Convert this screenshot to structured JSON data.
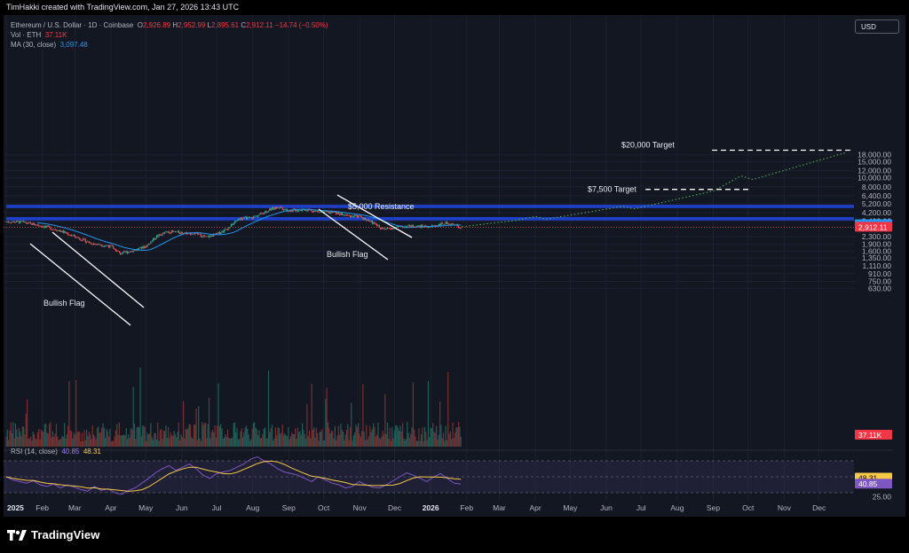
{
  "header": {
    "credit": "TimHakki created with TradingView.com, Jan 27, 2026 13:43 UTC"
  },
  "legend": {
    "symbol": "Ethereum / U.S. Dollar · 1D · Coinbase",
    "o_label": "O",
    "o": "2,926.89",
    "h_label": "H",
    "h": "2,952.99",
    "l_label": "L",
    "l": "2,895.61",
    "c_label": "C",
    "c": "2,912.11",
    "change": "−14.74 (−0.50%)",
    "vol_label": "Vol · ETH",
    "vol": "37.11K",
    "ma_label": "MA (30, close)",
    "ma": "3,097.48",
    "rsi_label": "RSI (14, close)",
    "rsi": "40.85",
    "rsi_ma": "48.31"
  },
  "currency_button": "USD",
  "footer": {
    "logo_text": "TradingView"
  },
  "colors": {
    "up": "#26a69a",
    "down": "#ef5350",
    "ma": "#2196f3",
    "resistance": "#1e40c8",
    "projection": "#4caf50",
    "rsi": "#7e57c2",
    "rsi_ma": "#f7c948"
  },
  "chart_data": {
    "type": "candlestick",
    "title": "Ethereum / U.S. Dollar · 1D · Coinbase",
    "x_axis_labels": [
      "2025",
      "Feb",
      "Mar",
      "Apr",
      "May",
      "Jun",
      "Jul",
      "Aug",
      "Sep",
      "Oct",
      "Nov",
      "Dec",
      "2026",
      "Feb",
      "Mar",
      "Apr",
      "May",
      "Jun",
      "Jul",
      "Aug",
      "Sep",
      "Oct",
      "Nov",
      "Dec"
    ],
    "y_axis": {
      "scale": "log",
      "range": [
        520,
        21000
      ],
      "ticks": [
        "18,000.00",
        "15,000.00",
        "12,000.00",
        "10,000.00",
        "8,000.00",
        "6,400.00",
        "5,200.00",
        "4,200.00",
        "3,400.00",
        "2,300.00",
        "1,900.00",
        "1,600.00",
        "1,350.00",
        "1,110.00",
        "910.00",
        "750.00",
        "630.00"
      ]
    },
    "price_series": {
      "points": [
        [
          "2025-01-01",
          3350
        ],
        [
          "2025-01-15",
          3300
        ],
        [
          "2025-02-01",
          3000
        ],
        [
          "2025-02-15",
          2700
        ],
        [
          "2025-03-01",
          2300
        ],
        [
          "2025-03-15",
          1950
        ],
        [
          "2025-04-01",
          1800
        ],
        [
          "2025-04-09",
          1500
        ],
        [
          "2025-04-20",
          1620
        ],
        [
          "2025-05-01",
          1800
        ],
        [
          "2025-05-10",
          2300
        ],
        [
          "2025-05-20",
          2600
        ],
        [
          "2025-06-01",
          2550
        ],
        [
          "2025-06-15",
          2450
        ],
        [
          "2025-06-22",
          2250
        ],
        [
          "2025-07-01",
          2450
        ],
        [
          "2025-07-10",
          2800
        ],
        [
          "2025-07-20",
          3600
        ],
        [
          "2025-08-01",
          3700
        ],
        [
          "2025-08-15",
          4500
        ],
        [
          "2025-08-24",
          4850
        ],
        [
          "2025-09-01",
          4400
        ],
        [
          "2025-09-15",
          4550
        ],
        [
          "2025-10-01",
          4200
        ],
        [
          "2025-10-10",
          4200
        ],
        [
          "2025-10-20",
          3900
        ],
        [
          "2025-11-01",
          3800
        ],
        [
          "2025-11-10",
          3400
        ],
        [
          "2025-11-21",
          2750
        ],
        [
          "2025-12-01",
          2900
        ],
        [
          "2025-12-15",
          3000
        ],
        [
          "2026-01-01",
          2950
        ],
        [
          "2026-01-15",
          3250
        ],
        [
          "2026-01-27",
          2912
        ]
      ]
    },
    "ma_30": {
      "last": 3097.48
    },
    "last_price": 2912.11,
    "volume_last": "37.11K",
    "resistance_zones": [
      {
        "label": "$5,000 Resistance",
        "low": 4700,
        "high": 5100
      },
      {
        "label": "",
        "low": 3450,
        "high": 3750
      }
    ],
    "targets": [
      {
        "label": "$7,500 Target",
        "value": 7500
      },
      {
        "label": "$20,000 Target",
        "value": 20000
      }
    ],
    "annotations": [
      {
        "label": "Bullish Flag",
        "start": "2025-01-10",
        "end": "2025-04-15"
      },
      {
        "label": "Bullish Flag",
        "start": "2025-10-01",
        "end": "2025-11-25"
      }
    ],
    "projection_path": [
      [
        "2026-01-28",
        2950
      ],
      [
        "2026-03-15",
        3450
      ],
      [
        "2026-04-01",
        3800
      ],
      [
        "2026-04-10",
        3550
      ],
      [
        "2026-06-15",
        4900
      ],
      [
        "2026-06-25",
        4600
      ],
      [
        "2026-09-01",
        7200
      ],
      [
        "2026-09-25",
        10500
      ],
      [
        "2026-10-05",
        9600
      ],
      [
        "2026-12-25",
        19000
      ]
    ],
    "rsi": {
      "value": 40.85,
      "ma": 48.31,
      "ticks": [
        "25.00"
      ],
      "bands": [
        30,
        70
      ],
      "points": [
        50,
        46,
        44,
        42,
        45,
        40,
        38,
        41,
        36,
        40,
        37,
        34,
        32,
        38,
        33,
        35,
        30,
        28,
        33,
        36,
        42,
        48,
        55,
        60,
        64,
        58,
        62,
        66,
        60,
        52,
        48,
        54,
        56,
        58,
        62,
        66,
        72,
        75,
        70,
        66,
        60,
        56,
        54,
        52,
        48,
        44,
        50,
        46,
        42,
        40,
        36,
        38,
        44,
        40,
        37,
        36,
        40,
        45,
        50,
        55,
        52,
        48,
        44,
        50,
        54,
        48,
        42,
        40.85
      ]
    }
  }
}
